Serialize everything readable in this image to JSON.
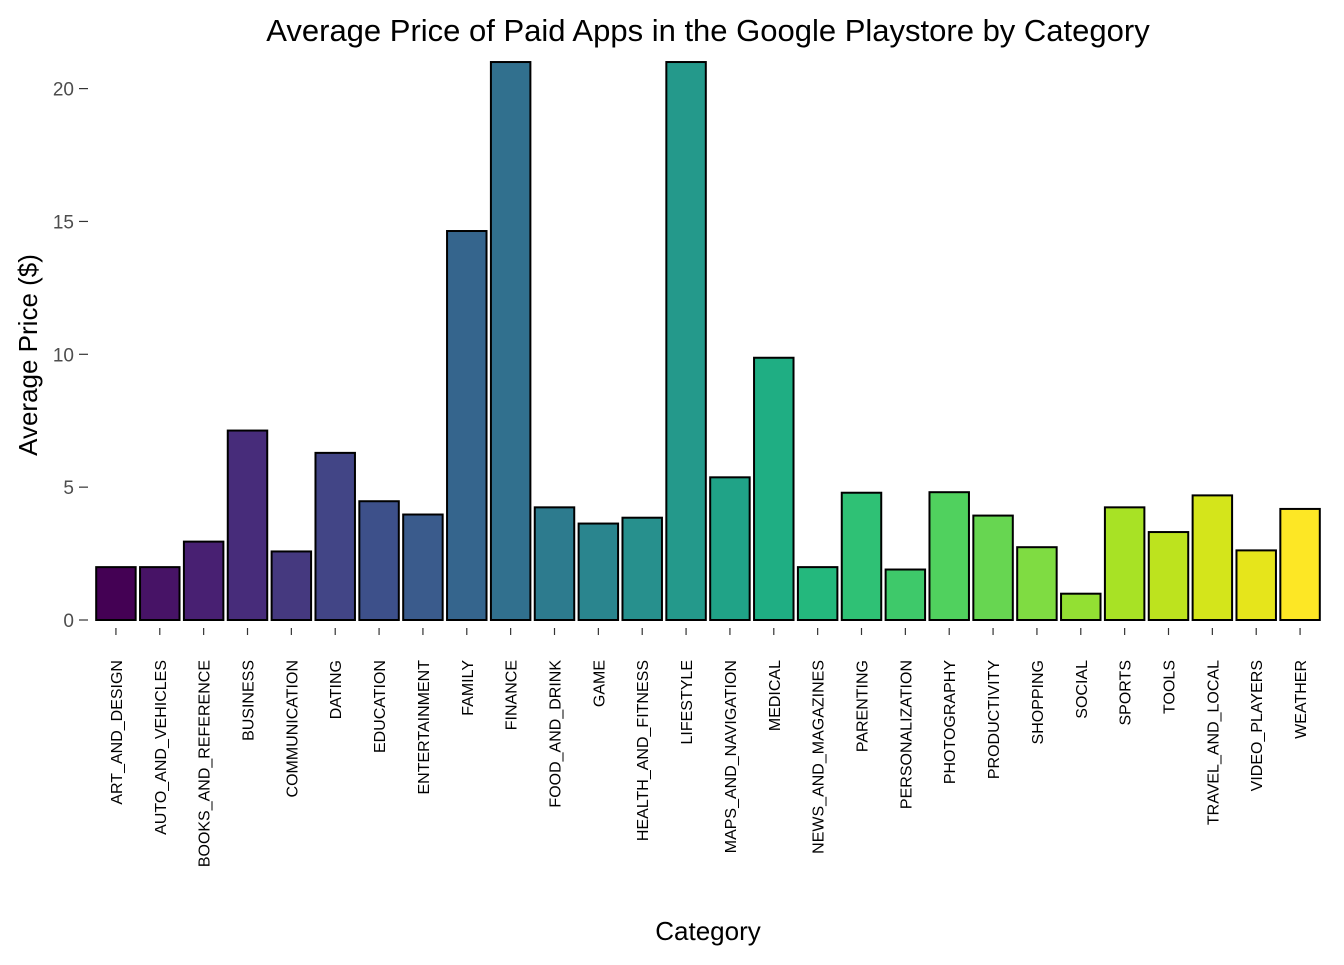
{
  "chart_data": {
    "type": "bar",
    "title": "Average Price of Paid Apps in the Google Playstore by Category",
    "xlabel": "Category",
    "ylabel": "Average Price ($)",
    "ylim": [
      0,
      21
    ],
    "yticks": [
      0,
      5,
      10,
      15,
      20
    ],
    "grid": false,
    "legend": "none",
    "categories": [
      "ART_AND_DESIGN",
      "AUTO_AND_VEHICLES",
      "BOOKS_AND_REFERENCE",
      "BUSINESS",
      "COMMUNICATION",
      "DATING",
      "EDUCATION",
      "ENTERTAINMENT",
      "FAMILY",
      "FINANCE",
      "FOOD_AND_DRINK",
      "GAME",
      "HEALTH_AND_FITNESS",
      "LIFESTYLE",
      "MAPS_AND_NAVIGATION",
      "MEDICAL",
      "NEWS_AND_MAGAZINES",
      "PARENTING",
      "PERSONALIZATION",
      "PHOTOGRAPHY",
      "PRODUCTIVITY",
      "SHOPPING",
      "SOCIAL",
      "SPORTS",
      "TOOLS",
      "TRAVEL_AND_LOCAL",
      "VIDEO_PLAYERS",
      "WEATHER"
    ],
    "values": [
      1.99,
      1.99,
      2.95,
      7.13,
      2.58,
      6.29,
      4.47,
      3.97,
      14.64,
      21.0,
      4.24,
      3.63,
      3.85,
      21.0,
      5.37,
      9.87,
      1.99,
      4.79,
      1.9,
      4.81,
      3.93,
      2.74,
      0.99,
      4.24,
      3.31,
      4.69,
      2.62,
      4.18
    ],
    "colors": [
      "#440154",
      "#471366",
      "#482072",
      "#472c7a",
      "#45397f",
      "#424586",
      "#3d508a",
      "#3a5b8c",
      "#35658d",
      "#31708e",
      "#2d7b8e",
      "#2a858e",
      "#27908d",
      "#24998b",
      "#20a387",
      "#1fae83",
      "#24b87d",
      "#2fc175",
      "#3ec96a",
      "#50d15e",
      "#67d651",
      "#7fdc42",
      "#93e033",
      "#a8e225",
      "#bde31e",
      "#d4e51b",
      "#e6e51b",
      "#fde725"
    ]
  }
}
